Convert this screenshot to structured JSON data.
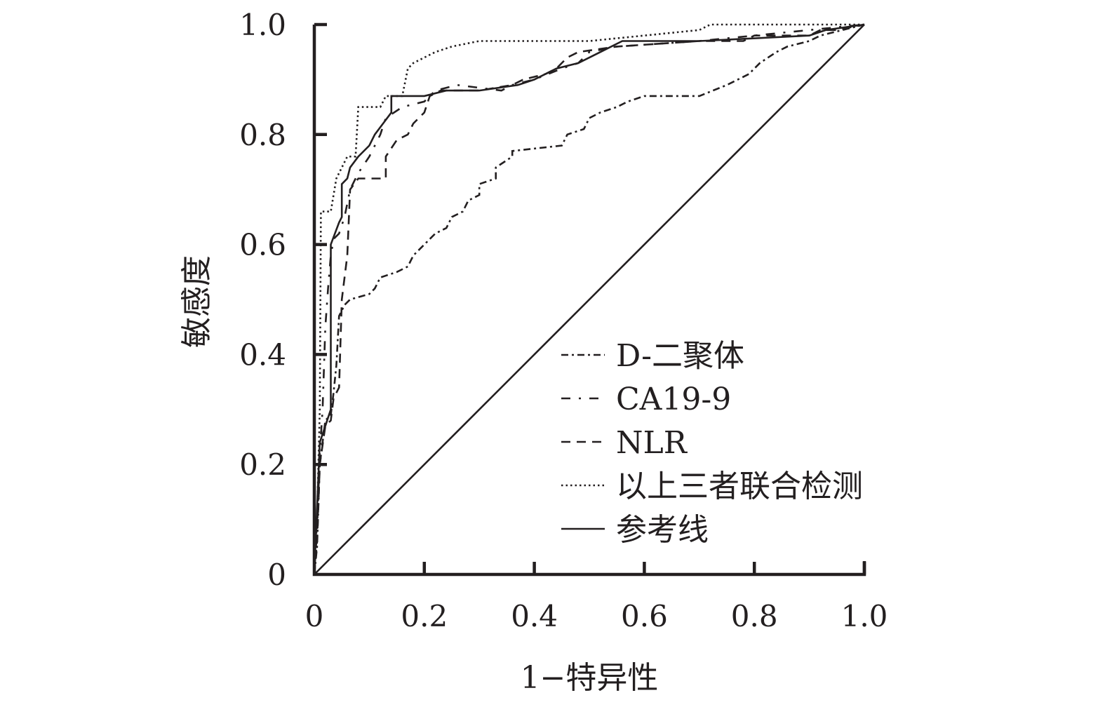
{
  "chart_data": {
    "type": "line",
    "xlabel": "1−特异性",
    "ylabel": "敏感度",
    "xlim": [
      0,
      1
    ],
    "ylim": [
      0,
      1
    ],
    "x_ticks": [
      "0",
      "0.2",
      "0.4",
      "0.6",
      "0.8",
      "1.0"
    ],
    "y_ticks": [
      "0",
      "0.2",
      "0.4",
      "0.6",
      "0.8",
      "1.0"
    ],
    "legend_position": "bottom-right",
    "grid": false,
    "series": [
      {
        "name": "D-二聚体",
        "style": "dash-dot",
        "points": [
          [
            0,
            0
          ],
          [
            0.005,
            0.05
          ],
          [
            0.01,
            0.2
          ],
          [
            0.02,
            0.28
          ],
          [
            0.03,
            0.29
          ],
          [
            0.035,
            0.33
          ],
          [
            0.04,
            0.38
          ],
          [
            0.045,
            0.47
          ],
          [
            0.05,
            0.48
          ],
          [
            0.055,
            0.49
          ],
          [
            0.065,
            0.5
          ],
          [
            0.1,
            0.51
          ],
          [
            0.11,
            0.52
          ],
          [
            0.12,
            0.54
          ],
          [
            0.15,
            0.55
          ],
          [
            0.17,
            0.56
          ],
          [
            0.18,
            0.58
          ],
          [
            0.2,
            0.6
          ],
          [
            0.21,
            0.61
          ],
          [
            0.22,
            0.62
          ],
          [
            0.24,
            0.63
          ],
          [
            0.25,
            0.65
          ],
          [
            0.27,
            0.66
          ],
          [
            0.28,
            0.68
          ],
          [
            0.3,
            0.69
          ],
          [
            0.3,
            0.71
          ],
          [
            0.33,
            0.72
          ],
          [
            0.33,
            0.74
          ],
          [
            0.36,
            0.76
          ],
          [
            0.36,
            0.77
          ],
          [
            0.45,
            0.78
          ],
          [
            0.46,
            0.8
          ],
          [
            0.49,
            0.81
          ],
          [
            0.5,
            0.83
          ],
          [
            0.52,
            0.84
          ],
          [
            0.55,
            0.85
          ],
          [
            0.57,
            0.86
          ],
          [
            0.6,
            0.87
          ],
          [
            0.7,
            0.87
          ],
          [
            0.75,
            0.89
          ],
          [
            0.79,
            0.91
          ],
          [
            0.81,
            0.93
          ],
          [
            0.84,
            0.95
          ],
          [
            0.86,
            0.96
          ],
          [
            0.9,
            0.97
          ],
          [
            0.92,
            0.98
          ],
          [
            1,
            1
          ]
        ]
      },
      {
        "name": "CA19-9",
        "style": "dash-dot-sparse",
        "points": [
          [
            0,
            0
          ],
          [
            0.005,
            0.08
          ],
          [
            0.01,
            0.22
          ],
          [
            0.015,
            0.3
          ],
          [
            0.02,
            0.45
          ],
          [
            0.025,
            0.52
          ],
          [
            0.03,
            0.58
          ],
          [
            0.035,
            0.61
          ],
          [
            0.045,
            0.62
          ],
          [
            0.055,
            0.65
          ],
          [
            0.065,
            0.7
          ],
          [
            0.08,
            0.73
          ],
          [
            0.1,
            0.76
          ],
          [
            0.12,
            0.8
          ],
          [
            0.13,
            0.83
          ],
          [
            0.16,
            0.85
          ],
          [
            0.2,
            0.86
          ],
          [
            0.22,
            0.88
          ],
          [
            0.26,
            0.89
          ],
          [
            0.34,
            0.88
          ],
          [
            0.36,
            0.89
          ],
          [
            0.4,
            0.9
          ],
          [
            0.45,
            0.92
          ],
          [
            0.48,
            0.93
          ],
          [
            0.5,
            0.95
          ],
          [
            0.55,
            0.96
          ],
          [
            0.7,
            0.97
          ],
          [
            0.8,
            0.98
          ],
          [
            0.9,
            0.99
          ],
          [
            1,
            1
          ]
        ]
      },
      {
        "name": "NLR",
        "style": "dash",
        "points": [
          [
            0,
            0
          ],
          [
            0.005,
            0.06
          ],
          [
            0.01,
            0.2
          ],
          [
            0.02,
            0.27
          ],
          [
            0.03,
            0.28
          ],
          [
            0.035,
            0.32
          ],
          [
            0.045,
            0.34
          ],
          [
            0.05,
            0.5
          ],
          [
            0.06,
            0.58
          ],
          [
            0.065,
            0.7
          ],
          [
            0.08,
            0.72
          ],
          [
            0.13,
            0.72
          ],
          [
            0.13,
            0.76
          ],
          [
            0.15,
            0.79
          ],
          [
            0.17,
            0.8
          ],
          [
            0.18,
            0.82
          ],
          [
            0.2,
            0.84
          ],
          [
            0.21,
            0.87
          ],
          [
            0.23,
            0.88
          ],
          [
            0.3,
            0.88
          ],
          [
            0.36,
            0.89
          ],
          [
            0.38,
            0.9
          ],
          [
            0.42,
            0.91
          ],
          [
            0.44,
            0.92
          ],
          [
            0.46,
            0.94
          ],
          [
            0.48,
            0.95
          ],
          [
            0.55,
            0.96
          ],
          [
            0.7,
            0.97
          ],
          [
            0.78,
            0.97
          ],
          [
            0.8,
            0.98
          ],
          [
            0.9,
            0.98
          ],
          [
            0.92,
            0.99
          ],
          [
            0.95,
            0.99
          ],
          [
            1,
            1
          ]
        ]
      },
      {
        "name": "以上三者联合检测",
        "style": "dot",
        "points": [
          [
            0,
            0
          ],
          [
            0.005,
            0.1
          ],
          [
            0.01,
            0.3
          ],
          [
            0.012,
            0.66
          ],
          [
            0.03,
            0.66
          ],
          [
            0.04,
            0.72
          ],
          [
            0.06,
            0.76
          ],
          [
            0.075,
            0.76
          ],
          [
            0.08,
            0.85
          ],
          [
            0.12,
            0.85
          ],
          [
            0.13,
            0.87
          ],
          [
            0.16,
            0.87
          ],
          [
            0.17,
            0.92
          ],
          [
            0.18,
            0.93
          ],
          [
            0.2,
            0.94
          ],
          [
            0.22,
            0.95
          ],
          [
            0.25,
            0.96
          ],
          [
            0.3,
            0.97
          ],
          [
            0.5,
            0.97
          ],
          [
            0.6,
            0.98
          ],
          [
            0.7,
            0.99
          ],
          [
            0.72,
            1
          ],
          [
            1,
            1
          ]
        ]
      },
      {
        "name": "参考线",
        "style": "solid",
        "points": [
          [
            0,
            0
          ],
          [
            1,
            1
          ]
        ]
      },
      {
        "name": "",
        "style": "solid",
        "points": [
          [
            0,
            0
          ],
          [
            0.005,
            0.12
          ],
          [
            0.01,
            0.24
          ],
          [
            0.02,
            0.27
          ],
          [
            0.03,
            0.3
          ],
          [
            0.03,
            0.6
          ],
          [
            0.045,
            0.64
          ],
          [
            0.05,
            0.65
          ],
          [
            0.05,
            0.71
          ],
          [
            0.06,
            0.72
          ],
          [
            0.065,
            0.74
          ],
          [
            0.08,
            0.76
          ],
          [
            0.1,
            0.78
          ],
          [
            0.11,
            0.8
          ],
          [
            0.125,
            0.82
          ],
          [
            0.14,
            0.84
          ],
          [
            0.14,
            0.87
          ],
          [
            0.18,
            0.87
          ],
          [
            0.2,
            0.87
          ],
          [
            0.24,
            0.88
          ],
          [
            0.3,
            0.88
          ],
          [
            0.37,
            0.89
          ],
          [
            0.4,
            0.9
          ],
          [
            0.44,
            0.92
          ],
          [
            0.48,
            0.93
          ],
          [
            0.52,
            0.95
          ],
          [
            0.56,
            0.97
          ],
          [
            0.7,
            0.97
          ],
          [
            0.9,
            0.98
          ],
          [
            0.93,
            0.99
          ],
          [
            1,
            1
          ]
        ]
      }
    ]
  }
}
